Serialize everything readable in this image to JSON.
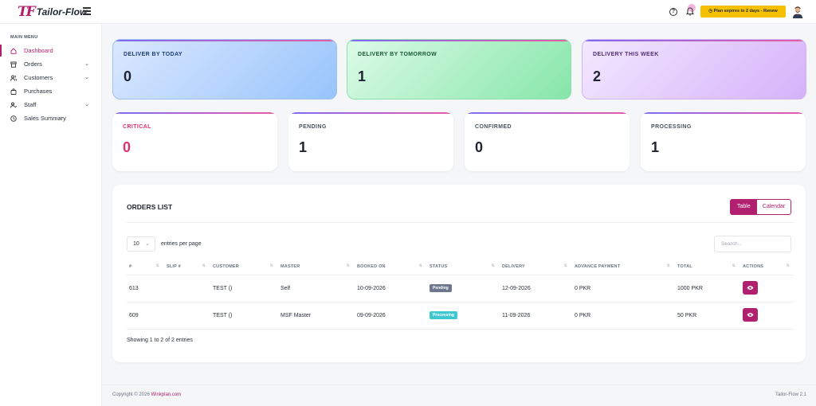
{
  "app": {
    "logo_mark": "TF",
    "name": "Tailor-Flow"
  },
  "topbar": {
    "plan_notice": "Plan expires in 2 days - Renew",
    "help_icon": "question-circle-icon",
    "bell_icon": "bell-icon"
  },
  "sidebar": {
    "heading": "MAIN MENU",
    "items": [
      {
        "label": "Dashboard",
        "icon": "home-icon",
        "active": true
      },
      {
        "label": "Orders",
        "icon": "box-icon",
        "has_submenu": true
      },
      {
        "label": "Customers",
        "icon": "users-icon",
        "has_submenu": true
      },
      {
        "label": "Purchases",
        "icon": "bag-icon"
      },
      {
        "label": "Staff",
        "icon": "user-staff-icon",
        "has_submenu": true
      },
      {
        "label": "Sales Summary",
        "icon": "clock-icon"
      }
    ]
  },
  "delivery_cards": [
    {
      "label": "DELIVER BY TODAY",
      "value": "0"
    },
    {
      "label": "DELIVERY BY TOMORROW",
      "value": "1"
    },
    {
      "label": "DELIVERY THIS WEEK",
      "value": "2"
    }
  ],
  "status_cards": [
    {
      "label": "CRITICAL",
      "value": "0"
    },
    {
      "label": "PENDING",
      "value": "1"
    },
    {
      "label": "CONFIRMED",
      "value": "0"
    },
    {
      "label": "PROCESSING",
      "value": "1"
    }
  ],
  "orders": {
    "title": "ORDERS LIST",
    "view_table": "Table",
    "view_calendar": "Calendar",
    "page_length": "10",
    "page_length_label": "entries per page",
    "search_placeholder": "Search...",
    "columns": [
      "#",
      "SLIP #",
      "CUSTOMER",
      "MASTER",
      "BOOKED ON",
      "STATUS",
      "DELIVERY",
      "ADVANCE PAYMENT",
      "TOTAL",
      "ACTIONS"
    ],
    "rows": [
      {
        "id": "613",
        "slip": "",
        "customer": "TEST ()",
        "master": "Self",
        "booked_on": "10-09-2026",
        "status": "Pending",
        "delivery": "12-09-2026",
        "advance": "0 PKR",
        "total": "1000 PKR"
      },
      {
        "id": "609",
        "slip": "",
        "customer": "TEST ()",
        "master": "MSF Master",
        "booked_on": "09-09-2026",
        "status": "Processing",
        "delivery": "11-09-2026",
        "advance": "0 PKR",
        "total": "50 PKR"
      }
    ],
    "showing": "Showing 1 to 2 of 2 entries"
  },
  "status_colors": {
    "Pending": "#6b7890",
    "Processing": "#3ec7cf"
  },
  "colors": {
    "accent": "#b0206e",
    "plan_button": "#f5c000"
  },
  "footer": {
    "copyright_prefix": "Copyright © 2026",
    "company": "Winkplan.com",
    "version": "Tailor-Flow 2.1"
  }
}
